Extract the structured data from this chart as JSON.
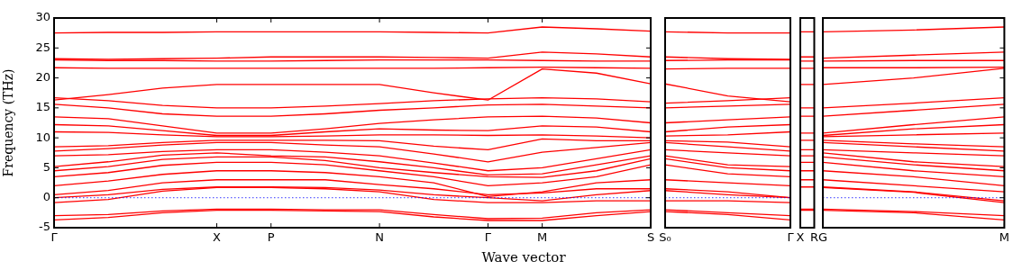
{
  "chart_data": [
    {
      "type": "line",
      "ylabel": "Frequency (THz)",
      "xlabel": "Wave vector",
      "categories": [
        "Γ",
        null,
        null,
        "X",
        "P",
        null,
        "N",
        null,
        "Γ",
        "M",
        null,
        "S"
      ],
      "ylim": [
        -5,
        30
      ],
      "yticks": [
        -5,
        0,
        5,
        10,
        15,
        20,
        25,
        30
      ],
      "grid": false,
      "legend": false,
      "ref_lines": [
        {
          "axis": "y",
          "value": 0,
          "color": "#0000ff",
          "line_style": "dotted"
        }
      ],
      "series": [
        {
          "color": "#ff0000",
          "values": [
            27.5,
            27.6,
            27.6,
            27.7,
            27.7,
            27.7,
            27.7,
            27.6,
            27.5,
            28.5,
            28.2,
            27.8
          ]
        },
        {
          "color": "#ff0000",
          "values": [
            23.2,
            23.1,
            23.2,
            23.3,
            23.5,
            23.5,
            23.5,
            23.4,
            23.3,
            24.3,
            24.0,
            23.5
          ]
        },
        {
          "color": "#ff0000",
          "values": [
            23.0,
            22.9,
            22.9,
            22.8,
            22.8,
            22.9,
            23.0,
            23.0,
            23.0,
            22.9,
            22.8,
            22.8
          ]
        },
        {
          "color": "#ff0000",
          "values": [
            21.7,
            21.6,
            21.6,
            21.6,
            21.6,
            21.6,
            21.6,
            21.6,
            21.7,
            21.8,
            21.7,
            21.6
          ]
        },
        {
          "color": "#ff0000",
          "values": [
            16.3,
            17.2,
            18.3,
            18.9,
            18.9,
            18.9,
            18.9,
            17.5,
            16.3,
            21.5,
            20.8,
            19.0
          ]
        },
        {
          "color": "#ff0000",
          "values": [
            16.7,
            16.2,
            15.4,
            15.0,
            15.0,
            15.3,
            15.7,
            16.2,
            16.5,
            16.7,
            16.5,
            16.0
          ]
        },
        {
          "color": "#ff0000",
          "values": [
            15.6,
            15.0,
            14.0,
            13.6,
            13.6,
            14.0,
            14.6,
            15.0,
            15.5,
            15.6,
            15.3,
            15.0
          ]
        },
        {
          "color": "#ff0000",
          "values": [
            13.5,
            13.2,
            12.0,
            10.8,
            10.8,
            11.5,
            12.4,
            13.0,
            13.5,
            13.6,
            13.3,
            12.5
          ]
        },
        {
          "color": "#ff0000",
          "values": [
            12.2,
            12.0,
            11.2,
            10.4,
            10.4,
            11.0,
            11.5,
            11.3,
            11.2,
            12.0,
            11.8,
            11.0
          ]
        },
        {
          "color": "#ff0000",
          "values": [
            11.0,
            10.9,
            10.5,
            10.2,
            10.2,
            10.3,
            10.5,
            10.5,
            10.4,
            10.5,
            10.3,
            10.0
          ]
        },
        {
          "color": "#ff0000",
          "values": [
            8.5,
            8.7,
            9.2,
            9.6,
            9.6,
            9.6,
            9.5,
            8.6,
            8.0,
            9.8,
            9.5,
            9.5
          ]
        },
        {
          "color": "#ff0000",
          "values": [
            7.8,
            8.2,
            8.8,
            9.2,
            9.2,
            8.8,
            8.5,
            7.3,
            6.0,
            7.6,
            8.4,
            9.2
          ]
        },
        {
          "color": "#ff0000",
          "values": [
            7.0,
            7.2,
            7.7,
            8.0,
            8.0,
            7.6,
            7.0,
            5.8,
            4.5,
            5.0,
            6.5,
            8.0
          ]
        },
        {
          "color": "#ff0000",
          "values": [
            5.2,
            6.0,
            7.1,
            7.5,
            7.0,
            6.8,
            6.0,
            5.0,
            3.8,
            4.0,
            5.5,
            7.0
          ]
        },
        {
          "color": "#ff0000",
          "values": [
            4.5,
            5.2,
            6.4,
            6.8,
            6.8,
            6.2,
            5.0,
            4.2,
            3.5,
            3.4,
            4.5,
            6.5
          ]
        },
        {
          "color": "#ff0000",
          "values": [
            3.5,
            4.2,
            5.4,
            5.9,
            5.9,
            5.5,
            4.5,
            3.5,
            2.0,
            2.5,
            3.5,
            5.5
          ]
        },
        {
          "color": "#ff0000",
          "values": [
            2.0,
            2.8,
            3.9,
            4.5,
            4.5,
            4.2,
            3.5,
            2.5,
            0.2,
            1.0,
            2.5,
            3.0
          ]
        },
        {
          "color": "#ff0000",
          "values": [
            0.5,
            1.2,
            2.5,
            3.0,
            3.0,
            3.0,
            2.2,
            1.5,
            0.5,
            0.8,
            1.5,
            1.5
          ]
        },
        {
          "color": "#ff0000",
          "values": [
            0.0,
            0.5,
            1.4,
            1.8,
            1.8,
            1.7,
            1.3,
            0.5,
            0.0,
            -0.5,
            0.5,
            1.2
          ]
        },
        {
          "color": "#ff0000",
          "values": [
            -0.8,
            -0.3,
            1.1,
            1.7,
            1.7,
            1.5,
            1.0,
            -0.3,
            -0.8,
            -0.8,
            -0.5,
            -0.5
          ]
        },
        {
          "color": "#ff0000",
          "values": [
            -3.0,
            -2.8,
            -2.2,
            -1.9,
            -1.9,
            -2.0,
            -2.0,
            -2.8,
            -3.5,
            -3.4,
            -2.5,
            -2.0
          ]
        },
        {
          "color": "#ff0000",
          "values": [
            -3.7,
            -3.3,
            -2.5,
            -2.1,
            -2.1,
            -2.2,
            -2.3,
            -3.2,
            -3.8,
            -3.8,
            -3.0,
            -2.3
          ]
        }
      ]
    },
    {
      "type": "line",
      "categories": [
        "S₀",
        null,
        "Γ"
      ],
      "ylim": [
        -5,
        30
      ],
      "tick_labels": "x",
      "grid": false,
      "legend": false,
      "ref_lines": [
        {
          "axis": "y",
          "value": 0,
          "color": "#0000ff",
          "line_style": "dotted"
        }
      ],
      "series": [
        {
          "color": "#ff0000",
          "values": [
            27.7,
            27.5,
            27.5
          ]
        },
        {
          "color": "#ff0000",
          "values": [
            23.5,
            23.2,
            23.1
          ]
        },
        {
          "color": "#ff0000",
          "values": [
            22.9,
            23.0,
            23.0
          ]
        },
        {
          "color": "#ff0000",
          "values": [
            21.5,
            21.6,
            21.6
          ]
        },
        {
          "color": "#ff0000",
          "values": [
            19.0,
            17.0,
            16.0
          ]
        },
        {
          "color": "#ff0000",
          "values": [
            15.8,
            16.2,
            16.7
          ]
        },
        {
          "color": "#ff0000",
          "values": [
            15.0,
            15.3,
            15.6
          ]
        },
        {
          "color": "#ff0000",
          "values": [
            12.5,
            13.0,
            13.5
          ]
        },
        {
          "color": "#ff0000",
          "values": [
            11.0,
            11.8,
            12.2
          ]
        },
        {
          "color": "#ff0000",
          "values": [
            10.3,
            10.5,
            11.0
          ]
        },
        {
          "color": "#ff0000",
          "values": [
            9.5,
            9.3,
            8.5
          ]
        },
        {
          "color": "#ff0000",
          "values": [
            9.2,
            8.5,
            7.8
          ]
        },
        {
          "color": "#ff0000",
          "values": [
            8.0,
            7.5,
            7.0
          ]
        },
        {
          "color": "#ff0000",
          "values": [
            7.0,
            5.5,
            5.2
          ]
        },
        {
          "color": "#ff0000",
          "values": [
            6.5,
            5.0,
            4.5
          ]
        },
        {
          "color": "#ff0000",
          "values": [
            5.5,
            4.0,
            3.5
          ]
        },
        {
          "color": "#ff0000",
          "values": [
            3.0,
            2.5,
            2.0
          ]
        },
        {
          "color": "#ff0000",
          "values": [
            1.5,
            1.0,
            0.0
          ]
        },
        {
          "color": "#ff0000",
          "values": [
            1.2,
            0.5,
            0.0
          ]
        },
        {
          "color": "#ff0000",
          "values": [
            -0.5,
            -0.5,
            -0.8
          ]
        },
        {
          "color": "#ff0000",
          "values": [
            -2.0,
            -2.5,
            -3.0
          ]
        },
        {
          "color": "#ff0000",
          "values": [
            -2.3,
            -2.8,
            -3.7
          ]
        }
      ]
    },
    {
      "type": "line",
      "categories": [
        "X",
        "R"
      ],
      "ylim": [
        -5,
        30
      ],
      "tick_labels": "x",
      "grid": false,
      "legend": false,
      "series": [
        {
          "color": "#ff0000",
          "values": [
            27.7,
            27.7
          ]
        },
        {
          "color": "#ff0000",
          "values": [
            23.5,
            23.5
          ]
        },
        {
          "color": "#ff0000",
          "values": [
            22.8,
            22.8
          ]
        },
        {
          "color": "#ff0000",
          "values": [
            21.6,
            21.6
          ]
        },
        {
          "color": "#ff0000",
          "values": [
            18.9,
            18.9
          ]
        },
        {
          "color": "#ff0000",
          "values": [
            15.0,
            15.0
          ]
        },
        {
          "color": "#ff0000",
          "values": [
            13.6,
            13.6
          ]
        },
        {
          "color": "#ff0000",
          "values": [
            10.8,
            10.8
          ]
        },
        {
          "color": "#ff0000",
          "values": [
            9.6,
            9.6
          ]
        },
        {
          "color": "#ff0000",
          "values": [
            8.0,
            8.0
          ]
        },
        {
          "color": "#ff0000",
          "values": [
            7.0,
            7.0
          ]
        },
        {
          "color": "#ff0000",
          "values": [
            5.9,
            5.9
          ]
        },
        {
          "color": "#ff0000",
          "values": [
            4.5,
            4.5
          ]
        },
        {
          "color": "#ff0000",
          "values": [
            3.0,
            3.0
          ]
        },
        {
          "color": "#ff0000",
          "values": [
            1.8,
            1.8
          ]
        },
        {
          "color": "#ff0000",
          "values": [
            -1.9,
            -1.9
          ]
        },
        {
          "color": "#ff0000",
          "values": [
            -2.1,
            -2.1
          ]
        }
      ]
    },
    {
      "type": "line",
      "categories": [
        "G",
        null,
        "M"
      ],
      "ylim": [
        -5,
        30
      ],
      "yticks": [
        {
          "value": -5,
          "label": null
        },
        {
          "value": 0,
          "label": null
        },
        {
          "value": 5,
          "label": null
        },
        {
          "value": 10,
          "label": null
        },
        {
          "value": 15,
          "label": null
        },
        {
          "value": 20,
          "label": null
        },
        {
          "value": 25,
          "label": null
        },
        {
          "value": 30,
          "label": null
        }
      ],
      "tick_labels": "x",
      "grid": false,
      "legend": false,
      "ref_lines": [
        {
          "axis": "y",
          "value": 0,
          "color": "#0000ff",
          "line_style": "dotted"
        }
      ],
      "series": [
        {
          "color": "#ff0000",
          "values": [
            27.7,
            28.0,
            28.5
          ]
        },
        {
          "color": "#ff0000",
          "values": [
            23.3,
            23.8,
            24.3
          ]
        },
        {
          "color": "#ff0000",
          "values": [
            22.8,
            22.9,
            22.9
          ]
        },
        {
          "color": "#ff0000",
          "values": [
            21.7,
            21.7,
            21.8
          ]
        },
        {
          "color": "#ff0000",
          "values": [
            18.9,
            20.0,
            21.6
          ]
        },
        {
          "color": "#ff0000",
          "values": [
            15.0,
            15.8,
            16.7
          ]
        },
        {
          "color": "#ff0000",
          "values": [
            13.6,
            14.6,
            15.6
          ]
        },
        {
          "color": "#ff0000",
          "values": [
            10.8,
            12.2,
            13.5
          ]
        },
        {
          "color": "#ff0000",
          "values": [
            10.4,
            11.5,
            12.2
          ]
        },
        {
          "color": "#ff0000",
          "values": [
            10.2,
            10.5,
            10.8
          ]
        },
        {
          "color": "#ff0000",
          "values": [
            9.6,
            9.0,
            8.5
          ]
        },
        {
          "color": "#ff0000",
          "values": [
            9.2,
            8.5,
            7.8
          ]
        },
        {
          "color": "#ff0000",
          "values": [
            8.0,
            7.5,
            7.0
          ]
        },
        {
          "color": "#ff0000",
          "values": [
            7.5,
            6.0,
            5.2
          ]
        },
        {
          "color": "#ff0000",
          "values": [
            6.8,
            5.5,
            4.5
          ]
        },
        {
          "color": "#ff0000",
          "values": [
            5.9,
            4.5,
            3.5
          ]
        },
        {
          "color": "#ff0000",
          "values": [
            4.5,
            3.5,
            2.0
          ]
        },
        {
          "color": "#ff0000",
          "values": [
            3.0,
            2.0,
            1.0
          ]
        },
        {
          "color": "#ff0000",
          "values": [
            1.8,
            1.0,
            -0.5
          ]
        },
        {
          "color": "#ff0000",
          "values": [
            1.7,
            0.9,
            -0.8
          ]
        },
        {
          "color": "#ff0000",
          "values": [
            -1.9,
            -2.3,
            -3.0
          ]
        },
        {
          "color": "#ff0000",
          "values": [
            -2.1,
            -2.5,
            -3.7
          ]
        }
      ]
    }
  ]
}
